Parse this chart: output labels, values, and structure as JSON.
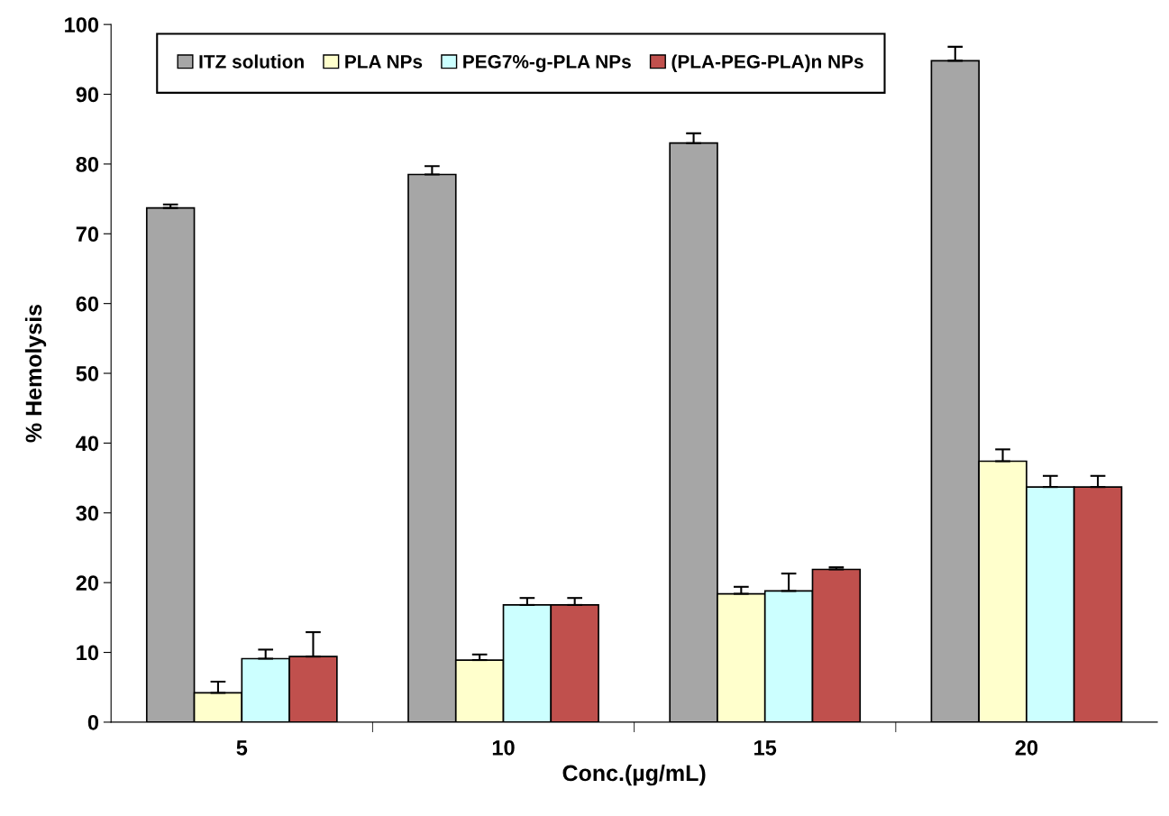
{
  "chart_data": {
    "type": "bar",
    "xlabel": "Conc.(µg/mL)",
    "ylabel": "% Hemolysis",
    "categories": [
      "5",
      "10",
      "15",
      "20"
    ],
    "series": [
      {
        "name": "ITZ solution",
        "color": "#a6a6a6",
        "values": [
          73.7,
          78.5,
          83.0,
          94.8
        ],
        "errors": [
          [
            73.7,
            74.2
          ],
          [
            78.5,
            79.7
          ],
          [
            83.0,
            84.4
          ],
          [
            94.8,
            96.8
          ]
        ]
      },
      {
        "name": "PLA NPs",
        "color": "#ffffcc",
        "values": [
          4.2,
          8.9,
          18.4,
          37.4
        ],
        "errors": [
          [
            4.2,
            5.8
          ],
          [
            8.9,
            9.7
          ],
          [
            18.4,
            19.4
          ],
          [
            37.4,
            39.1
          ]
        ]
      },
      {
        "name": "PEG7%-g-PLA NPs",
        "color": "#ccffff",
        "values": [
          9.1,
          16.8,
          18.8,
          33.7
        ],
        "errors": [
          [
            9.1,
            10.4
          ],
          [
            16.8,
            17.8
          ],
          [
            18.8,
            21.3
          ],
          [
            33.7,
            35.3
          ]
        ]
      },
      {
        "name": "(PLA-PEG-PLA)n NPs",
        "color": "#c0504d",
        "values": [
          9.4,
          16.8,
          21.9,
          33.7
        ],
        "errors": [
          [
            9.4,
            12.9
          ],
          [
            16.8,
            17.8
          ],
          [
            21.9,
            22.2
          ],
          [
            33.7,
            35.3
          ]
        ]
      }
    ],
    "ylim": [
      0,
      100
    ],
    "yticks": [
      0,
      10,
      20,
      30,
      40,
      50,
      60,
      70,
      80,
      90,
      100
    ],
    "legend": "top",
    "grid": false
  }
}
